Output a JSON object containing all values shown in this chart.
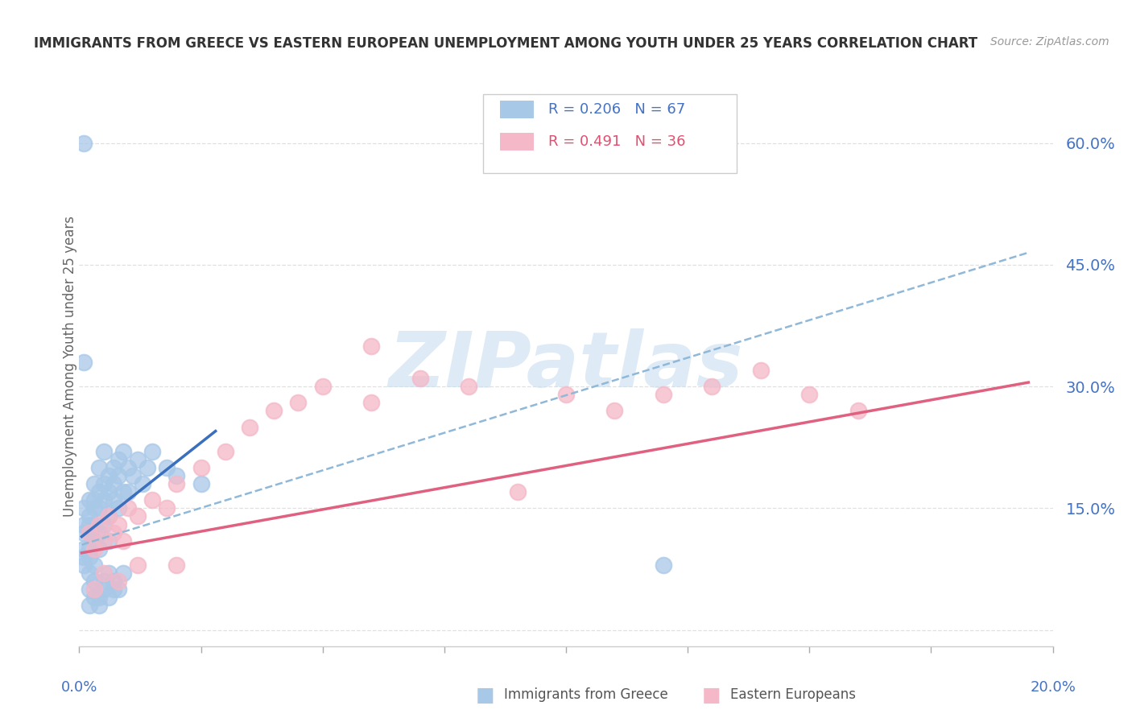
{
  "title": "IMMIGRANTS FROM GREECE VS EASTERN EUROPEAN UNEMPLOYMENT AMONG YOUTH UNDER 25 YEARS CORRELATION CHART",
  "source": "Source: ZipAtlas.com",
  "ylabel": "Unemployment Among Youth under 25 years",
  "xlim": [
    0.0,
    0.2
  ],
  "ylim": [
    -0.02,
    0.67
  ],
  "yticks": [
    0.0,
    0.15,
    0.3,
    0.45,
    0.6
  ],
  "ytick_labels": [
    "",
    "15.0%",
    "30.0%",
    "45.0%",
    "60.0%"
  ],
  "legend_blue_r": "R = 0.206",
  "legend_blue_n": "N = 67",
  "legend_pink_r": "R = 0.491",
  "legend_pink_n": "N = 36",
  "blue_color": "#a8c8e8",
  "pink_color": "#f4b8c8",
  "blue_line_color": "#3a6fbd",
  "pink_line_color": "#e06080",
  "dashed_line_color": "#90b8d8",
  "watermark_color": "#c8dff0",
  "blue_scatter_x": [
    0.001,
    0.001,
    0.001,
    0.001,
    0.001,
    0.001,
    0.002,
    0.002,
    0.002,
    0.002,
    0.002,
    0.002,
    0.002,
    0.003,
    0.003,
    0.003,
    0.003,
    0.003,
    0.003,
    0.004,
    0.004,
    0.004,
    0.004,
    0.004,
    0.005,
    0.005,
    0.005,
    0.005,
    0.006,
    0.006,
    0.006,
    0.006,
    0.007,
    0.007,
    0.007,
    0.008,
    0.008,
    0.008,
    0.009,
    0.009,
    0.01,
    0.01,
    0.011,
    0.012,
    0.013,
    0.014,
    0.015,
    0.018,
    0.02,
    0.025,
    0.002,
    0.003,
    0.004,
    0.005,
    0.006,
    0.007,
    0.008,
    0.009,
    0.002,
    0.003,
    0.004,
    0.005,
    0.006,
    0.007,
    0.001,
    0.001,
    0.12
  ],
  "blue_scatter_y": [
    0.12,
    0.1,
    0.08,
    0.15,
    0.13,
    0.09,
    0.14,
    0.12,
    0.1,
    0.16,
    0.13,
    0.09,
    0.07,
    0.15,
    0.13,
    0.11,
    0.18,
    0.16,
    0.08,
    0.17,
    0.15,
    0.12,
    0.2,
    0.1,
    0.18,
    0.16,
    0.13,
    0.22,
    0.19,
    0.17,
    0.14,
    0.11,
    0.2,
    0.18,
    0.16,
    0.21,
    0.19,
    0.15,
    0.22,
    0.17,
    0.2,
    0.17,
    0.19,
    0.21,
    0.18,
    0.2,
    0.22,
    0.2,
    0.19,
    0.18,
    0.05,
    0.06,
    0.04,
    0.05,
    0.07,
    0.06,
    0.05,
    0.07,
    0.03,
    0.04,
    0.03,
    0.06,
    0.04,
    0.05,
    0.6,
    0.33,
    0.08
  ],
  "pink_scatter_x": [
    0.002,
    0.003,
    0.004,
    0.005,
    0.006,
    0.007,
    0.008,
    0.009,
    0.01,
    0.012,
    0.015,
    0.018,
    0.02,
    0.025,
    0.03,
    0.035,
    0.04,
    0.045,
    0.05,
    0.06,
    0.07,
    0.08,
    0.09,
    0.1,
    0.11,
    0.12,
    0.13,
    0.14,
    0.15,
    0.16,
    0.003,
    0.005,
    0.008,
    0.012,
    0.02,
    0.06
  ],
  "pink_scatter_y": [
    0.12,
    0.1,
    0.13,
    0.11,
    0.14,
    0.12,
    0.13,
    0.11,
    0.15,
    0.14,
    0.16,
    0.15,
    0.18,
    0.2,
    0.22,
    0.25,
    0.27,
    0.28,
    0.3,
    0.28,
    0.31,
    0.3,
    0.17,
    0.29,
    0.27,
    0.29,
    0.3,
    0.32,
    0.29,
    0.27,
    0.05,
    0.07,
    0.06,
    0.08,
    0.08,
    0.35
  ],
  "blue_trend_x": [
    0.0005,
    0.028
  ],
  "blue_trend_y": [
    0.115,
    0.245
  ],
  "dashed_trend_x": [
    0.0005,
    0.195
  ],
  "dashed_trend_y": [
    0.105,
    0.465
  ],
  "pink_trend_x": [
    0.0005,
    0.195
  ],
  "pink_trend_y": [
    0.095,
    0.305
  ]
}
